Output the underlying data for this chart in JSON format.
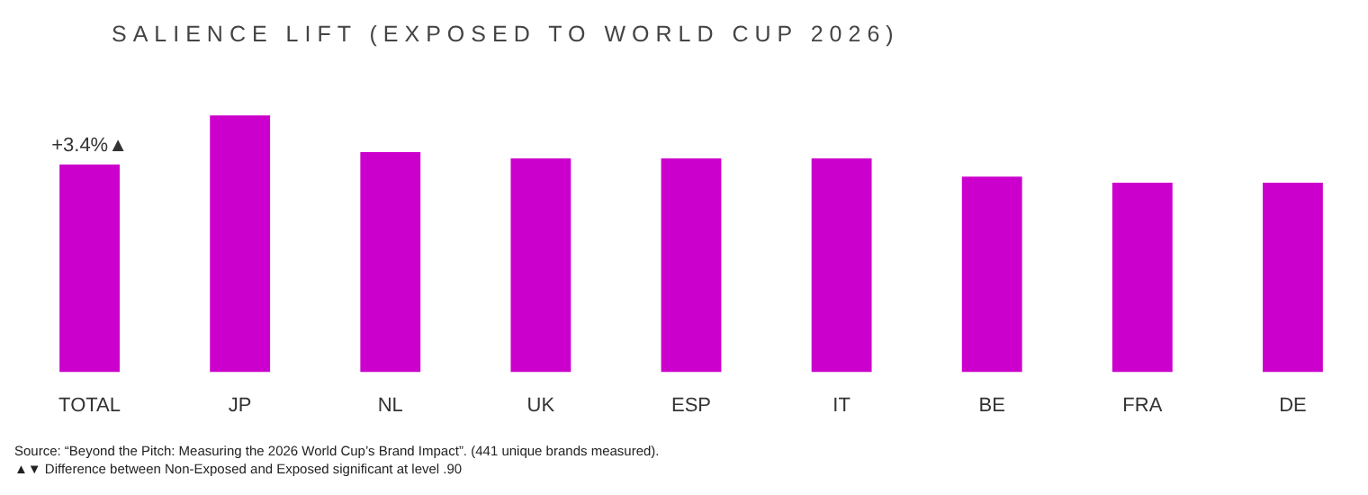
{
  "chart_data": {
    "type": "bar",
    "title": "SALIENCE LIFT (EXPOSED TO WORLD CUP 2026)",
    "tick_labels": "x",
    "categories": [
      "TOTAL",
      "JP",
      "NL",
      "UK",
      "ESP",
      "IT",
      "BE",
      "FRA",
      "DE"
    ],
    "values": [
      3.4,
      4.2,
      3.6,
      3.5,
      3.5,
      3.5,
      3.2,
      3.1,
      3.1
    ],
    "value_labels": [
      "+3.4%▲",
      null,
      null,
      null,
      null,
      null,
      null,
      null,
      null
    ],
    "color": "#cc00cc",
    "grid": false,
    "legend": false,
    "annotations": [
      "Source: “Beyond the Pitch: Measuring the 2026 World Cup’s Brand Impact”. (441 unique brands measured).",
      "▲▼ Difference between Non-Exposed and Exposed significant at level .90"
    ]
  }
}
